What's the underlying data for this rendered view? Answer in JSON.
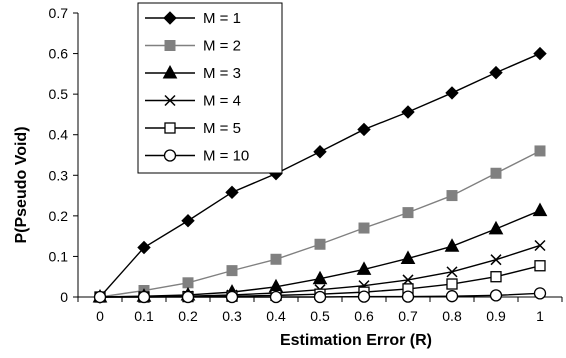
{
  "chart_data": {
    "type": "line",
    "title": "",
    "xlabel": "Estimation Error (R)",
    "ylabel": "P(Pseudo Void)",
    "x": [
      0,
      0.1,
      0.2,
      0.3,
      0.4,
      0.5,
      0.6,
      0.7,
      0.8,
      0.9,
      1
    ],
    "x_tick_labels": [
      "0",
      "0.1",
      "0.2",
      "0.3",
      "0.4",
      "0.5",
      "0.6",
      "0.7",
      "0.8",
      "0.9",
      "1"
    ],
    "y_tick_labels": [
      "0",
      "0.1",
      "0.2",
      "0.3",
      "0.4",
      "0.5",
      "0.6",
      "0.7"
    ],
    "ylim": [
      0,
      0.7
    ],
    "grid": false,
    "legend_position": "top-left",
    "series": [
      {
        "name": "M = 1",
        "marker": "diamond",
        "color": "#000000",
        "values": [
          0,
          0.122,
          0.188,
          0.258,
          0.304,
          0.358,
          0.413,
          0.456,
          0.503,
          0.553,
          0.6
        ]
      },
      {
        "name": "M = 2",
        "marker": "square",
        "color": "#808080",
        "values": [
          0,
          0.016,
          0.035,
          0.065,
          0.093,
          0.13,
          0.17,
          0.208,
          0.25,
          0.305,
          0.36
        ]
      },
      {
        "name": "M = 3",
        "marker": "triangle",
        "color": "#000000",
        "values": [
          0,
          0.002,
          0.005,
          0.012,
          0.025,
          0.045,
          0.068,
          0.095,
          0.125,
          0.168,
          0.213
        ]
      },
      {
        "name": "M = 4",
        "marker": "x",
        "color": "#000000",
        "values": [
          0,
          0.001,
          0.002,
          0.005,
          0.01,
          0.018,
          0.028,
          0.042,
          0.062,
          0.092,
          0.127
        ]
      },
      {
        "name": "M = 5",
        "marker": "open-square",
        "color": "#000000",
        "values": [
          0,
          0,
          0.001,
          0.002,
          0.004,
          0.007,
          0.012,
          0.02,
          0.032,
          0.05,
          0.077
        ]
      },
      {
        "name": "M = 10",
        "marker": "open-circle",
        "color": "#000000",
        "values": [
          0,
          0,
          0,
          0,
          0,
          0,
          0.001,
          0.001,
          0.002,
          0.004,
          0.009
        ]
      }
    ]
  }
}
